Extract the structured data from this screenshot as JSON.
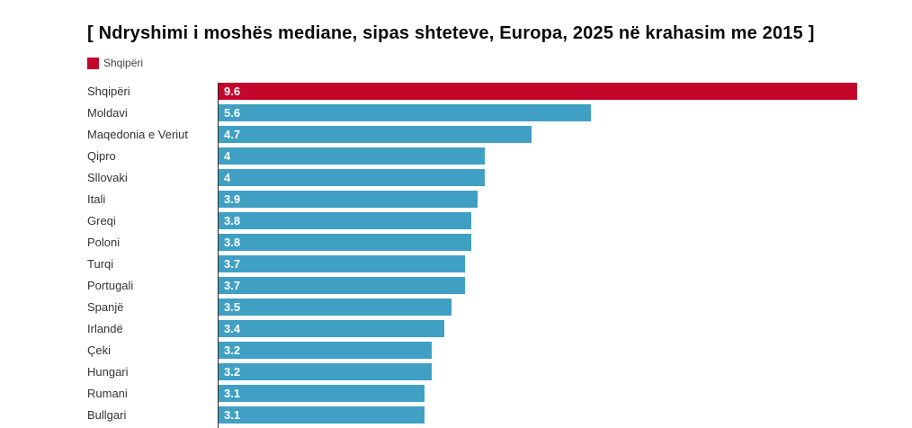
{
  "title": "[ Ndryshimi i moshës mediane, sipas shteteve, Europa, 2025 në krahasim me 2015 ]",
  "legend": {
    "label": "Shqipëri",
    "swatch_color": "#c4062b"
  },
  "colors": {
    "highlight": "#c4062b",
    "default": "#3fa0c4",
    "axis": "#2b2b2b",
    "category_text": "#333333",
    "value_text": "#ffffff"
  },
  "chart_data": {
    "type": "bar",
    "orientation": "horizontal",
    "title": "Ndryshimi i moshës mediane, sipas shteteve, Europa, 2025 në krahasim me 2015",
    "categories": [
      "Shqipëri",
      "Moldavi",
      "Maqedonia e Veriut",
      "Qipro",
      "Sllovaki",
      "Itali",
      "Greqi",
      "Poloni",
      "Turqi",
      "Portugali",
      "Spanjë",
      "Irlandë",
      "Çeki",
      "Hungari",
      "Rumani",
      "Bullgari"
    ],
    "values": [
      9.6,
      5.6,
      4.7,
      4,
      4,
      3.9,
      3.8,
      3.8,
      3.7,
      3.7,
      3.5,
      3.4,
      3.2,
      3.2,
      3.1,
      3.1
    ],
    "value_labels": [
      "9.6",
      "5.6",
      "4.7",
      "4",
      "4",
      "3.9",
      "3.8",
      "3.8",
      "3.7",
      "3.7",
      "3.5",
      "3.4",
      "3.2",
      "3.2",
      "3.1",
      "3.1"
    ],
    "highlighted_category": "Shqipëri",
    "xlim": [
      0,
      9.6
    ],
    "grid": false,
    "legend_position": "top-left",
    "legend_entries": [
      "Shqipëri"
    ]
  }
}
